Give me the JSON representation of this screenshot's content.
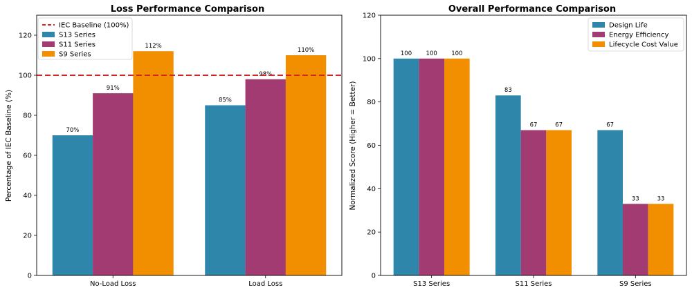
{
  "chart_data": [
    {
      "type": "bar",
      "title": "Loss Performance Comparison",
      "xlabel": "",
      "ylabel": "Percentage of IEC Baseline (%)",
      "categories": [
        "No-Load Loss",
        "Load Loss"
      ],
      "series": [
        {
          "name": "S13 Series",
          "values": [
            70,
            85
          ],
          "color": "#2e86ab"
        },
        {
          "name": "S11 Series",
          "values": [
            91,
            98
          ],
          "color": "#a23b72"
        },
        {
          "name": "S9 Series",
          "values": [
            112,
            110
          ],
          "color": "#f18f01"
        }
      ],
      "value_labels": [
        [
          "70%",
          "85%"
        ],
        [
          "91%",
          "98%"
        ],
        [
          "112%",
          "110%"
        ]
      ],
      "reference_line": {
        "label": "IEC Baseline (100%)",
        "value": 100,
        "color": "#d62728"
      },
      "ylim": [
        0,
        130
      ],
      "yticks": [
        0,
        20,
        40,
        60,
        80,
        100,
        120
      ],
      "legend": "top-left",
      "grid": false
    },
    {
      "type": "bar",
      "title": "Overall Performance Comparison",
      "xlabel": "",
      "ylabel": "Normalized Score (Higher = Better)",
      "categories": [
        "S13 Series",
        "S11 Series",
        "S9 Series"
      ],
      "series": [
        {
          "name": "Design Life",
          "values": [
            100,
            83,
            67
          ],
          "color": "#2e86ab"
        },
        {
          "name": "Energy Efficiency",
          "values": [
            100,
            67,
            33
          ],
          "color": "#a23b72"
        },
        {
          "name": "Lifecycle Cost Value",
          "values": [
            100,
            67,
            33
          ],
          "color": "#f18f01"
        }
      ],
      "value_labels": [
        [
          "100",
          "83",
          "67"
        ],
        [
          "100",
          "67",
          "33"
        ],
        [
          "100",
          "67",
          "33"
        ]
      ],
      "ylim": [
        0,
        120
      ],
      "yticks": [
        0,
        20,
        40,
        60,
        80,
        100,
        120
      ],
      "legend": "top-right",
      "grid": false
    }
  ]
}
